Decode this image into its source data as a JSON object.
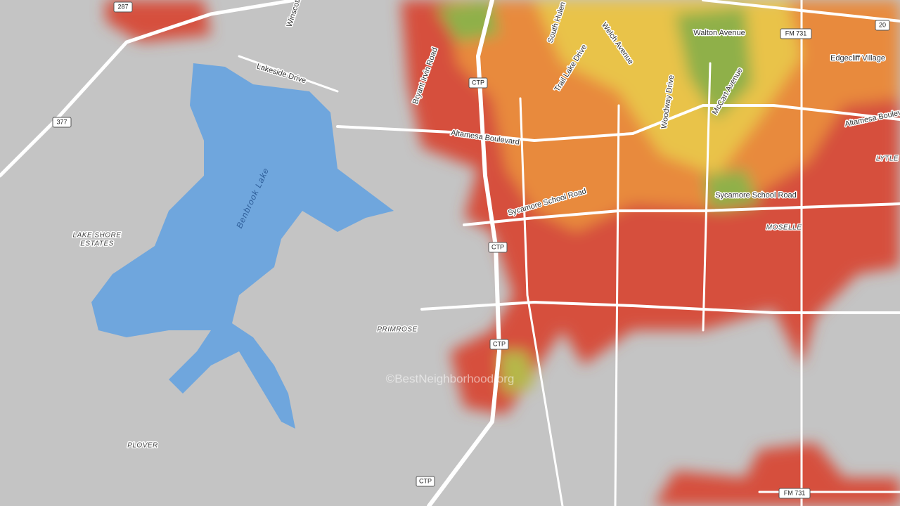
{
  "labels": [
    "Walton Avenue",
    "Edgecliff Village",
    "Altamesa Boulevard",
    "Altamesa Bouleva",
    "Lakeside Drive",
    "Winscott",
    "Bryant Irvin Road",
    "South Hulen",
    "Trail Lake Drive",
    "Welch Avenue",
    "Woodway Drive",
    "McCart Avenue",
    "Sycamore School Road",
    "Sycamore School Road",
    "LYTLE",
    "MOSELLE",
    "LAKE SHORE",
    "ESTATES",
    "Benbrook Lake",
    "PRIMROSE",
    "PLOVER"
  ],
  "shields": [
    "FM 731",
    "FM 731",
    "20",
    "377",
    "287",
    "CTP",
    "CTP",
    "CTP",
    "CTP"
  ],
  "watermark": "©BestNeighborhood.org"
}
